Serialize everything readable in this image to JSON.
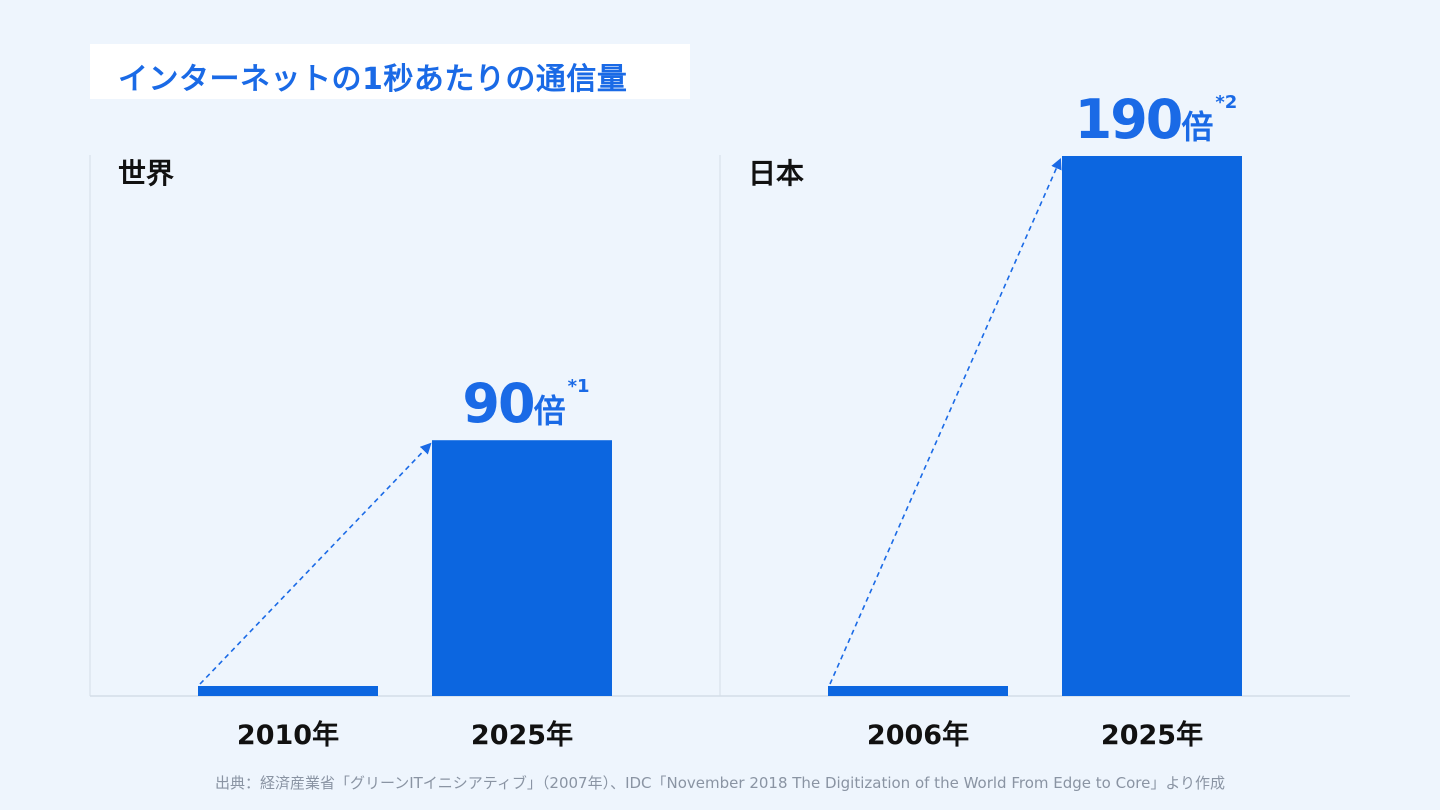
{
  "title": "インターネットの1秒あたりの通信量",
  "accent_color": "#1a6ae6",
  "bar_color": "#0c66e0",
  "chart_data": [
    {
      "type": "bar",
      "title": "世界",
      "categories": [
        "2010年",
        "2025年"
      ],
      "values": [
        1,
        90
      ],
      "annotation": {
        "value": "90",
        "unit": "倍",
        "note": "*1"
      },
      "arrow": "dashed-from-first-to-second"
    },
    {
      "type": "bar",
      "title": "日本",
      "categories": [
        "2006年",
        "2025年"
      ],
      "values": [
        1,
        190
      ],
      "annotation": {
        "value": "190",
        "unit": "倍",
        "note": "*2"
      },
      "arrow": "dashed-from-first-to-second"
    }
  ],
  "source": "出典：経済産業省「グリーンITイニシアティブ」（2007年）、IDC「November 2018 The Digitization of the World From Edge to Core」より作成"
}
